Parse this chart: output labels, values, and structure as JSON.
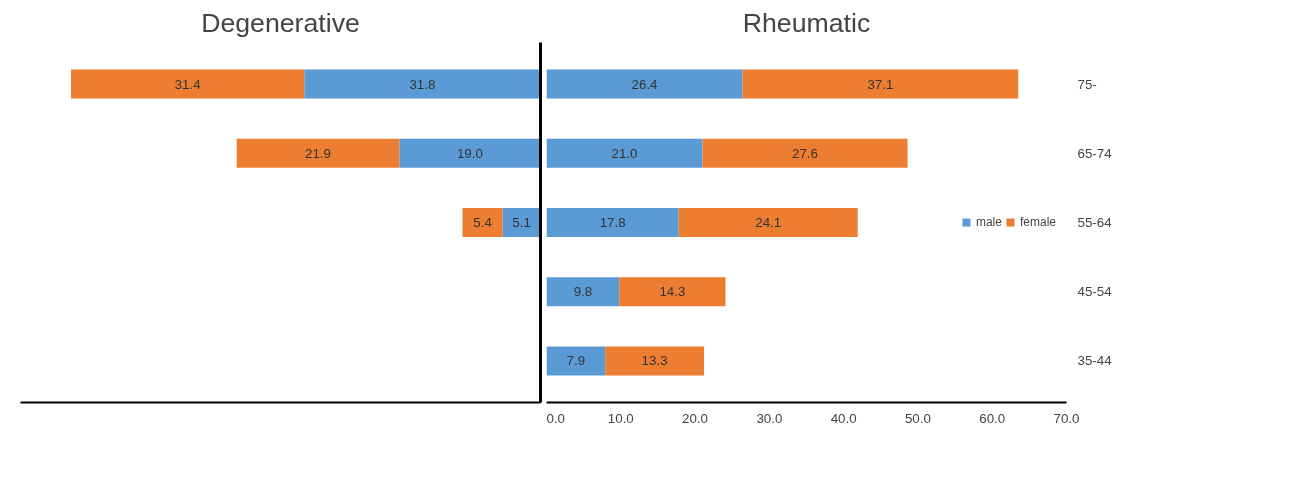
{
  "chart_data": [
    {
      "type": "bar",
      "title": "Degenerative",
      "orientation": "horizontal",
      "stacked": true,
      "categories": [
        null,
        null,
        null,
        null,
        null
      ],
      "series": [
        {
          "color": "#5b9bd5",
          "values": [
            31.8,
            19.0,
            5.1,
            null,
            null
          ],
          "value_labels": [
            "31.8",
            "19.0",
            "5.1",
            null,
            null
          ]
        },
        {
          "color": "#ed7d31",
          "values": [
            31.4,
            21.9,
            5.4,
            null,
            null
          ],
          "value_labels": [
            "31.4",
            "21.9",
            "5.4",
            null,
            null
          ]
        }
      ],
      "xlim": [
        70,
        0
      ],
      "tick_labels": false
    },
    {
      "type": "bar",
      "title": "Rheumatic",
      "orientation": "horizontal",
      "stacked": true,
      "categories": [
        "75-",
        "65-74",
        "55-64",
        "45-54",
        "35-44"
      ],
      "series": [
        {
          "name": "male",
          "color": "#5b9bd5",
          "values": [
            26.4,
            21.0,
            17.8,
            9.8,
            7.9
          ],
          "value_labels": [
            "26.4",
            "21.0",
            "17.8",
            "9.8",
            "7.9"
          ]
        },
        {
          "name": "female",
          "color": "#ed7d31",
          "values": [
            37.1,
            27.6,
            24.1,
            14.3,
            13.3
          ],
          "value_labels": [
            "37.1",
            "27.6",
            "24.1",
            "14.3",
            "13.3"
          ]
        }
      ],
      "xlim": [
        0,
        70
      ],
      "xticks": [
        {
          "value": 0,
          "label": "0.0"
        },
        {
          "value": 10,
          "label": "10.0"
        },
        {
          "value": 20,
          "label": "20.0"
        },
        {
          "value": 30,
          "label": "30.0"
        },
        {
          "value": 40,
          "label": "40.0"
        },
        {
          "value": 50,
          "label": "50.0"
        },
        {
          "value": 60,
          "label": "60.0"
        },
        {
          "value": 70,
          "label": "70.0"
        }
      ],
      "legend": "right"
    }
  ]
}
